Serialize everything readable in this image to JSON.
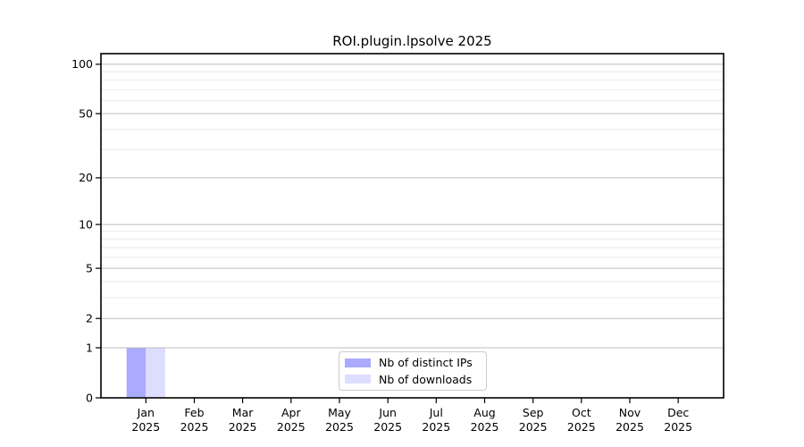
{
  "chart_data": {
    "type": "bar",
    "title": "ROI.plugin.lpsolve 2025",
    "categories": [
      "Jan",
      "Feb",
      "Mar",
      "Apr",
      "May",
      "Jun",
      "Jul",
      "Aug",
      "Sep",
      "Oct",
      "Nov",
      "Dec"
    ],
    "x_year_line": "2025",
    "series": [
      {
        "name": "Nb of distinct IPs",
        "color": "#aaaaff",
        "values": [
          1,
          0,
          0,
          0,
          0,
          0,
          0,
          0,
          0,
          0,
          0,
          0
        ]
      },
      {
        "name": "Nb of downloads",
        "color": "#ddddff",
        "values": [
          1,
          0,
          0,
          0,
          0,
          0,
          0,
          0,
          0,
          0,
          0,
          0
        ]
      }
    ],
    "yscale": "log1p",
    "ylim": [
      0,
      117
    ],
    "yticks": [
      0,
      1,
      2,
      5,
      10,
      20,
      50,
      100
    ],
    "yticks_minor": [
      3,
      4,
      6,
      7,
      8,
      9,
      30,
      40,
      60,
      70,
      80,
      90
    ],
    "grid": "horizontal",
    "legend_position": "bottom-center",
    "colors": {
      "major_gridline": "#bdbdbd",
      "minor_gridline": "#e9e9e9",
      "frame": "#000000",
      "text": "#000000",
      "legend_border": "#cbcbcb"
    }
  }
}
